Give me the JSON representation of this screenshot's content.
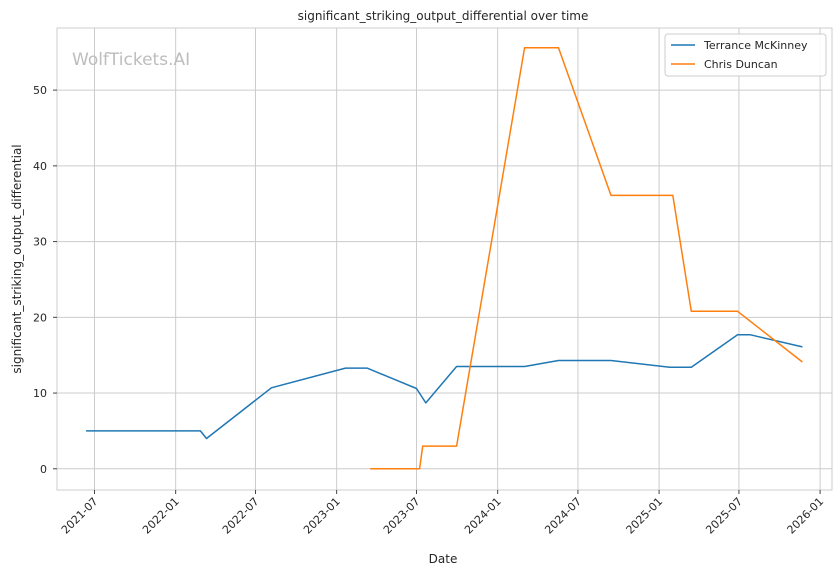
{
  "chart_data": {
    "type": "line",
    "title": "significant_striking_output_differential over time",
    "xlabel": "Date",
    "ylabel": "significant_striking_output_differential",
    "watermark": "WolfTickets.AI",
    "x_axis": {
      "type": "date",
      "range": [
        "2021-04-07",
        "2026-01-28"
      ],
      "ticks": [
        "2021-07",
        "2022-01",
        "2022-07",
        "2023-01",
        "2023-07",
        "2024-01",
        "2024-07",
        "2025-01",
        "2025-07",
        "2026-01"
      ]
    },
    "y_axis": {
      "range": [
        -2.8,
        58.2
      ],
      "ticks": [
        0,
        10,
        20,
        30,
        40,
        50
      ]
    },
    "grid": true,
    "legend": {
      "placement": "top-right"
    },
    "series": [
      {
        "name": "Terrance McKinney",
        "color": "#1f77b4",
        "points": [
          [
            "2021-06-12",
            5.0
          ],
          [
            "2022-02-26",
            5.0
          ],
          [
            "2022-03-12",
            4.0
          ],
          [
            "2022-08-06",
            10.7
          ],
          [
            "2023-01-21",
            13.3
          ],
          [
            "2023-03-11",
            13.3
          ],
          [
            "2023-07-01",
            10.6
          ],
          [
            "2023-07-22",
            8.7
          ],
          [
            "2023-09-30",
            13.5
          ],
          [
            "2024-03-02",
            13.5
          ],
          [
            "2024-05-18",
            14.3
          ],
          [
            "2024-09-14",
            14.3
          ],
          [
            "2025-01-25",
            13.4
          ],
          [
            "2025-03-15",
            13.4
          ],
          [
            "2025-06-28",
            17.7
          ],
          [
            "2025-07-26",
            17.7
          ],
          [
            "2025-11-22",
            16.1
          ]
        ]
      },
      {
        "name": "Chris Duncan",
        "color": "#ff7f0e",
        "points": [
          [
            "2023-03-18",
            0.0
          ],
          [
            "2023-07-08",
            0.0
          ],
          [
            "2023-07-15",
            3.0
          ],
          [
            "2023-09-30",
            3.0
          ],
          [
            "2024-03-02",
            55.6
          ],
          [
            "2024-05-18",
            55.6
          ],
          [
            "2024-09-14",
            36.1
          ],
          [
            "2025-02-01",
            36.1
          ],
          [
            "2025-03-15",
            20.8
          ],
          [
            "2025-06-28",
            20.8
          ],
          [
            "2025-11-22",
            14.1
          ]
        ]
      }
    ]
  }
}
